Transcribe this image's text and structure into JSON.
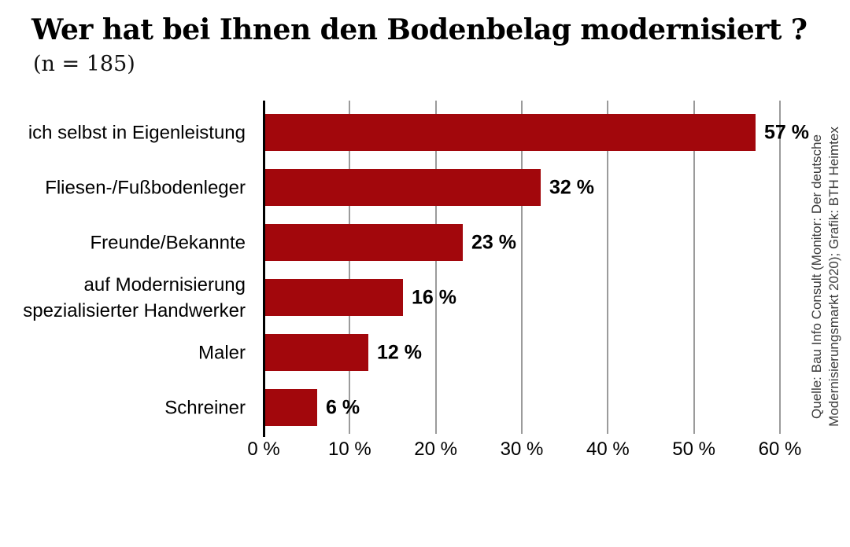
{
  "title": "Wer hat bei Ihnen den Bodenbelag modernisiert ?",
  "subtitle": "(n = 185)",
  "source": {
    "line1": "Quelle: Bau Info Consult (Monitor: Der deutsche",
    "line2": "Modernisierungsmarkt 2020); Grafik: BTH Heimtex"
  },
  "colors": {
    "background": "#ffffff",
    "bar": "#a2070c",
    "grid": "#9b9b9b",
    "axis": "#000000",
    "source_text": "#3c3c3c"
  },
  "chart_data": {
    "type": "bar",
    "orientation": "horizontal",
    "title": "Wer hat bei Ihnen den Bodenbelag modernisiert ?",
    "sample_size_note": "(n = 185)",
    "categories": [
      "ich selbst in Eigenleistung",
      "Fliesen-/Fußbodenleger",
      "Freunde/Bekannte",
      "auf Modernisierung spezialisierter Handwerker",
      "Maler",
      "Schreiner"
    ],
    "values": [
      57,
      32,
      23,
      16,
      12,
      6
    ],
    "rows": [
      {
        "label_lines": [
          "ich selbst in Eigenleistung"
        ],
        "value": 57,
        "value_label": "57 %"
      },
      {
        "label_lines": [
          "Fliesen-/Fußbodenleger"
        ],
        "value": 32,
        "value_label": "32 %"
      },
      {
        "label_lines": [
          "Freunde/Bekannte"
        ],
        "value": 23,
        "value_label": "23 %"
      },
      {
        "label_lines": [
          "auf Modernisierung",
          "spezialisierter Handwerker"
        ],
        "value": 16,
        "value_label": "16 %"
      },
      {
        "label_lines": [
          "Maler"
        ],
        "value": 12,
        "value_label": "12 %"
      },
      {
        "label_lines": [
          "Schreiner"
        ],
        "value": 6,
        "value_label": "6 %"
      }
    ],
    "xlabel": "",
    "ylabel": "",
    "xlim": [
      0,
      60
    ],
    "x_ticks": [
      {
        "value": 0,
        "label": "0 %"
      },
      {
        "value": 10,
        "label": "10 %"
      },
      {
        "value": 20,
        "label": "20 %"
      },
      {
        "value": 30,
        "label": "30 %"
      },
      {
        "value": 40,
        "label": "40 %"
      },
      {
        "value": 50,
        "label": "50 %"
      },
      {
        "value": 60,
        "label": "60 %"
      }
    ],
    "grid": true,
    "legend": false,
    "value_unit": "%"
  }
}
